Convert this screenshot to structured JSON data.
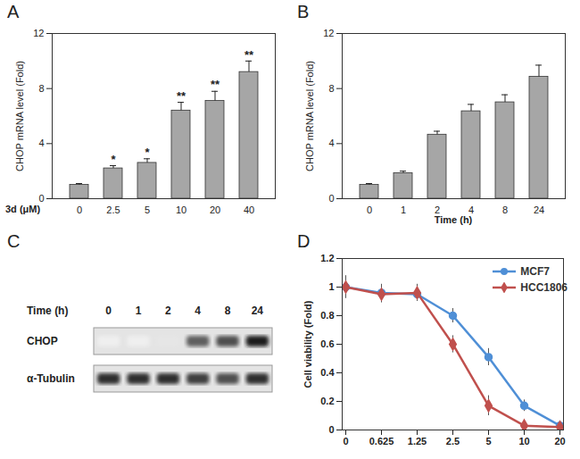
{
  "chart_data": [
    {
      "title": "A",
      "type": "bar",
      "categories": [
        "0",
        "2.5",
        "5",
        "10",
        "20",
        "40"
      ],
      "values": [
        1,
        2.2,
        2.6,
        6.4,
        7.1,
        9.2
      ],
      "errors": [
        0.1,
        0.2,
        0.3,
        0.6,
        0.7,
        0.8
      ],
      "significance": [
        null,
        "*",
        "*",
        "**",
        "**",
        "**"
      ],
      "x_label": "3d (μM)",
      "y_label": "CHOP mRNA level (Fold)",
      "ylim": [
        0,
        12
      ],
      "yticks": [
        0,
        4,
        8,
        12
      ],
      "color": "#a6a6a6"
    },
    {
      "title": "B",
      "type": "bar",
      "categories": [
        "0",
        "1",
        "2",
        "4",
        "8",
        "24"
      ],
      "values": [
        1,
        1.85,
        4.65,
        6.35,
        7.0,
        8.85
      ],
      "errors": [
        0.1,
        0.15,
        0.25,
        0.5,
        0.55,
        0.85
      ],
      "x_label": "Time (h)",
      "y_label": "CHOP mRNA level (Fold)",
      "ylim": [
        0,
        12
      ],
      "yticks": [
        0,
        4,
        8,
        12
      ],
      "color": "#a6a6a6"
    },
    {
      "title": "C",
      "type": "blot",
      "x_label": "Time (h)",
      "lanes": [
        "0",
        "1",
        "2",
        "4",
        "8",
        "24"
      ],
      "rows": [
        {
          "name": "CHOP",
          "intensity": [
            0.12,
            0.12,
            0.18,
            0.7,
            0.75,
            0.9
          ]
        },
        {
          "name": "α-Tubulin",
          "intensity": [
            0.85,
            0.85,
            0.85,
            0.8,
            0.75,
            0.85
          ]
        }
      ]
    },
    {
      "title": "D",
      "type": "line",
      "categories": [
        "0",
        "0.625",
        "1.25",
        "2.5",
        "5",
        "10",
        "20"
      ],
      "y_label": "Cell viability (Fold)",
      "ylim": [
        0,
        1.2
      ],
      "yticks": [
        0,
        0.2,
        0.4,
        0.6,
        0.8,
        1,
        1.2
      ],
      "legend": "top-right",
      "series": [
        {
          "name": "MCF7",
          "color": "#4f8fd6",
          "marker": "circle",
          "values": [
            1,
            0.96,
            0.95,
            0.8,
            0.51,
            0.17,
            0.03
          ],
          "errors": [
            0.07,
            0.06,
            0.05,
            0.05,
            0.06,
            0.04,
            0.02
          ]
        },
        {
          "name": "HCC1806",
          "color": "#c0504d",
          "marker": "diamond",
          "values": [
            1,
            0.95,
            0.96,
            0.6,
            0.17,
            0.03,
            0.02
          ],
          "errors": [
            0.08,
            0.06,
            0.06,
            0.06,
            0.07,
            0.02,
            0.01
          ]
        }
      ]
    }
  ]
}
